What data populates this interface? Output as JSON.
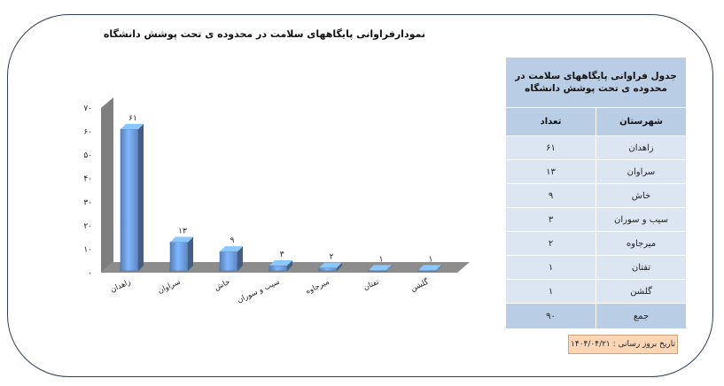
{
  "chart_data": {
    "type": "bar",
    "title": "نمودارفراوانی پایگاههای سلامت در محدوده ی تحت پوشش دانشگاه",
    "categories": [
      "زاهدان",
      "سراوان",
      "خاش",
      "سیب و سوران",
      "میرجاوه",
      "تفتان",
      "گلشن"
    ],
    "values": [
      61,
      13,
      9,
      3,
      2,
      1,
      1
    ],
    "value_labels": [
      "۶۱",
      "۱۳",
      "۹",
      "۳",
      "۲",
      "۱",
      "۱"
    ],
    "ylim": [
      0,
      70
    ],
    "y_ticks": [
      0,
      10,
      20,
      30,
      40,
      50,
      60,
      70
    ],
    "y_tick_labels": [
      "۰",
      "۱۰",
      "۲۰",
      "۳۰",
      "۴۰",
      "۵۰",
      "۶۰",
      "۷۰"
    ],
    "grid": false,
    "legend": "none",
    "style": "3d-column",
    "bar_color": "#6f9fe0",
    "xlabel": "",
    "ylabel": ""
  },
  "table": {
    "title": "جدول فراوانی پایگاههای سلامت در محدوده ی تحت پوشش دانشگاه",
    "headers": {
      "city": "شهرستان",
      "count": "تعداد"
    },
    "rows": [
      {
        "city": "زاهدان",
        "count": "۶۱"
      },
      {
        "city": "سراوان",
        "count": "۱۳"
      },
      {
        "city": "خاش",
        "count": "۹"
      },
      {
        "city": "سیب و سوران",
        "count": "۳"
      },
      {
        "city": "میرجاوه",
        "count": "۲"
      },
      {
        "city": "تفتان",
        "count": "۱"
      },
      {
        "city": "گلشن",
        "count": "۱"
      }
    ],
    "total": {
      "label": "جمع",
      "count": "۹۰"
    },
    "header_color": "#b9cde5",
    "row_color": "#dce6f2"
  },
  "footer": {
    "date_text": "تاریخ بروز رسانی : ۱۴۰۴/۰۴/۲۱",
    "box_color": "#fcd5b5"
  }
}
